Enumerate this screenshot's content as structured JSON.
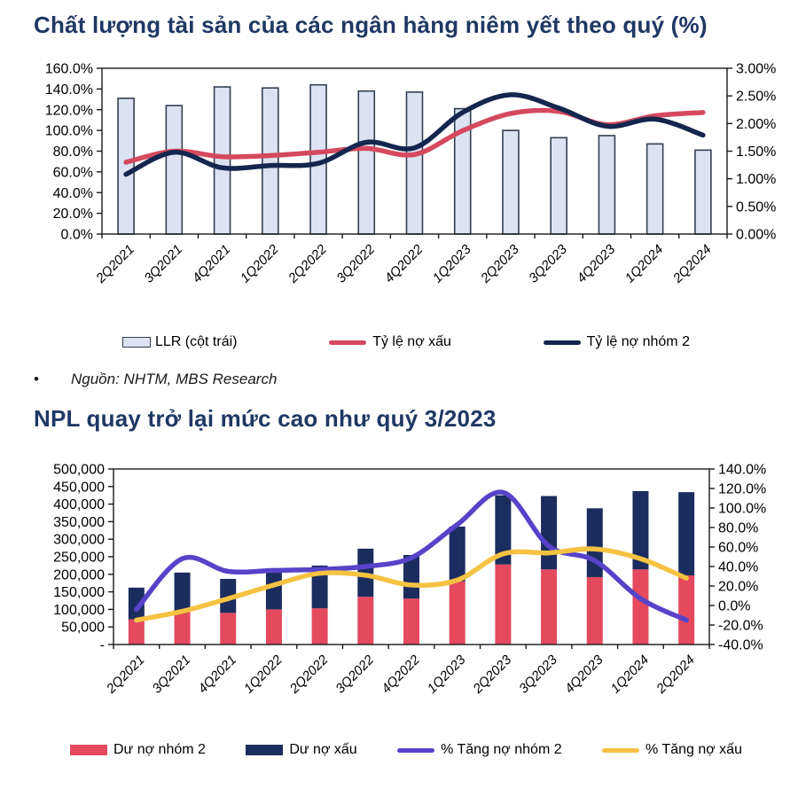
{
  "theme": {
    "title_color": "#1f3864",
    "axis_color": "#1a1a1a",
    "background": "#ffffff"
  },
  "chart1": {
    "title": "Chất lượng tài sản của các ngân hàng niêm yết theo quý (%)",
    "legend": [
      {
        "label": "LLR (cột trái)"
      },
      {
        "label": "Tỷ lệ nợ xấu"
      },
      {
        "label": "Tỷ lệ nợ nhóm 2"
      }
    ]
  },
  "source_note": {
    "bullet": "•",
    "text": "Nguồn: NHTM, MBS Research"
  },
  "chart2": {
    "title": "NPL quay trở lại mức cao như quý 3/2023",
    "legend": [
      {
        "label": "Dư nợ nhóm 2"
      },
      {
        "label": "Dư nợ xấu"
      },
      {
        "label": "% Tăng nợ nhóm 2"
      },
      {
        "label": "% Tăng nợ xấu"
      }
    ]
  },
  "chart_data": [
    {
      "type": "bar",
      "subtype": "combo bar + smooth lines, dual axis",
      "title": "Chất lượng tài sản của các ngân hàng niêm yết theo quý (%)",
      "categories": [
        "2Q2021",
        "3Q2021",
        "4Q2021",
        "1Q2022",
        "2Q2022",
        "3Q2022",
        "4Q2022",
        "1Q2023",
        "2Q2023",
        "3Q2023",
        "4Q2023",
        "1Q2024",
        "2Q2024"
      ],
      "grid": false,
      "legend_position": "bottom",
      "left_axis": {
        "min": 0,
        "max": 160,
        "tick_labels": [
          "160.0%",
          "140.0%",
          "120.0%",
          "100.0%",
          "80.0%",
          "60.0%",
          "40.0%",
          "20.0%",
          "0.0%"
        ]
      },
      "right_axis": {
        "min": 0,
        "max": 3,
        "tick_labels": [
          "3.00%",
          "2.50%",
          "2.00%",
          "1.50%",
          "1.00%",
          "0.50%",
          "0.00%"
        ]
      },
      "series": [
        {
          "name": "LLR (cột trái)",
          "type": "bar",
          "axis": "left",
          "fill": "#dbe3f2",
          "stroke": "#333f50",
          "values": [
            131,
            124,
            142,
            141,
            144,
            138,
            137,
            121,
            100,
            93,
            95,
            87,
            81
          ]
        },
        {
          "name": "Tỷ lệ nợ xấu",
          "type": "line",
          "axis": "right",
          "color": "#d5495e",
          "values": [
            1.3,
            1.5,
            1.4,
            1.42,
            1.48,
            1.55,
            1.44,
            1.87,
            2.18,
            2.22,
            1.98,
            2.14,
            2.2
          ]
        },
        {
          "name": "Tỷ lệ nợ nhóm 2",
          "type": "line",
          "axis": "right",
          "color": "#14264e",
          "values": [
            1.08,
            1.48,
            1.2,
            1.24,
            1.28,
            1.66,
            1.56,
            2.2,
            2.52,
            2.28,
            1.95,
            2.08,
            1.79
          ]
        }
      ]
    },
    {
      "type": "bar",
      "subtype": "combo stacked bar + smooth lines, dual axis",
      "title": "NPL quay trở lại mức cao như quý 3/2023",
      "categories": [
        "2Q2021",
        "3Q2021",
        "4Q2021",
        "1Q2022",
        "2Q2022",
        "3Q2022",
        "4Q2022",
        "1Q2023",
        "2Q2023",
        "3Q2023",
        "4Q2023",
        "1Q2024",
        "2Q2024"
      ],
      "grid": false,
      "legend_position": "bottom",
      "left_axis": {
        "min": 0,
        "max": 500000,
        "tick_labels": [
          "500,000",
          "450,000",
          "400,000",
          "350,000",
          "300,000",
          "250,000",
          "200,000",
          "150,000",
          "100,000",
          "50,000",
          "-"
        ]
      },
      "right_axis": {
        "min": -40,
        "max": 140,
        "tick_labels": [
          "140.0%",
          "120.0%",
          "100.0%",
          "80.0%",
          "60.0%",
          "40.0%",
          "20.0%",
          "0.0%",
          "-20.0%",
          "-40.0%"
        ]
      },
      "series": [
        {
          "name": "Dư nợ nhóm 2",
          "type": "bar",
          "stack": true,
          "axis": "left",
          "fill": "#e4495e",
          "values": [
            72000,
            95000,
            90000,
            100000,
            103000,
            136000,
            131000,
            180000,
            228000,
            214000,
            192000,
            214000,
            197000
          ]
        },
        {
          "name": "Dư nợ xấu",
          "type": "bar",
          "stack": true,
          "axis": "left",
          "fill": "#1b2d5e",
          "values": [
            90000,
            110000,
            97000,
            117000,
            122000,
            137000,
            124000,
            156000,
            197000,
            209000,
            196000,
            223000,
            237000
          ]
        },
        {
          "name": "% Tăng nợ nhóm 2",
          "type": "line",
          "axis": "right",
          "color": "#5743c9",
          "values": [
            -4,
            48,
            35,
            36,
            37,
            40,
            49,
            83,
            116,
            61,
            46,
            7,
            -15
          ]
        },
        {
          "name": "% Tăng nợ xấu",
          "type": "line",
          "axis": "right",
          "color": "#f5c242",
          "values": [
            -15,
            -6,
            7,
            21,
            33,
            31,
            21,
            26,
            53,
            54,
            58,
            48,
            28
          ]
        }
      ]
    }
  ]
}
